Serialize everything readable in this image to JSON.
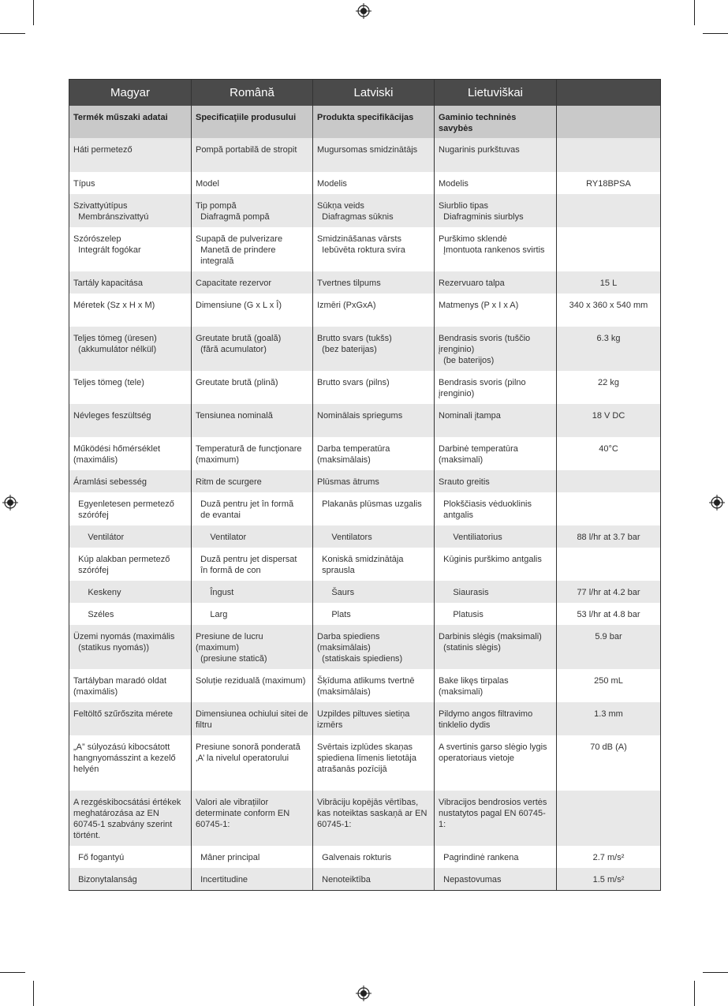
{
  "table": {
    "headers": [
      "Magyar",
      "Română",
      "Latviski",
      "Lietuviškai",
      ""
    ],
    "rows": [
      [
        "Termék műszaki adatai",
        "Specificaţiile produsului",
        "Produkta specifikācijas",
        "Gaminio techninės savybės",
        ""
      ],
      [
        "Háti permetező",
        "Pompă portabilă de stropit",
        "Mugursomas smidzinātājs",
        "Nugarinis purkštuvas",
        ""
      ],
      [
        "Típus",
        "Model",
        "Modelis",
        "Modelis",
        "RY18BPSA"
      ],
      [
        "Szivattyútípus\n  Membránszivattyú",
        "Tip pompă\n  Diafragmă pompă",
        "Sūkņa veids\n  Diafragmas sūknis",
        "Siurblio tipas\n  Diafragminis siurblys",
        ""
      ],
      [
        "Szórószelep\n  Integrált fogókar",
        "Supapă de pulverizare\n  Manetă de prindere\n  integrală",
        "Smidzināšanas vārsts\n  Iebūvēta roktura svira",
        "Purškimo sklendė\n  Įmontuota rankenos svirtis",
        ""
      ],
      [
        "Tartály kapacitása",
        "Capacitate rezervor",
        "Tvertnes tilpums",
        "Rezervuaro talpa",
        "15 L"
      ],
      [
        "Méretek (Sz x H x M)",
        "Dimensiune (G x L x Î)",
        "Izmēri (PxGxA)",
        "Matmenys (P x I x A)",
        "340 x 360 x 540 mm"
      ],
      [
        "Teljes tömeg (üresen)\n  (akkumulátor nélkül)",
        "Greutate brută (goală)\n  (fără acumulator)",
        "Brutto svars (tukšs)\n  (bez baterijas)",
        "Bendrasis svoris (tuščio įrenginio)\n  (be baterijos)",
        "6.3 kg"
      ],
      [
        "Teljes tömeg (tele)",
        "Greutate brută (plină)",
        "Brutto svars (pilns)",
        "Bendrasis svoris (pilno įrenginio)",
        "22 kg"
      ],
      [
        "Névleges feszültség",
        "Tensiunea nominală",
        "Nominālais spriegums",
        "Nominali įtampa",
        "18 V DC"
      ],
      [
        "Működési hőmérséklet (maximális)",
        "Temperatură de funcţionare (maximum)",
        "Darba temperatūra (maksimālais)",
        "Darbinė temperatūra (maksimali)",
        "40°C"
      ],
      [
        "Áramlási sebesség",
        "Ritm de scurgere",
        "Plūsmas ātrums",
        "Srauto greitis",
        ""
      ],
      [
        "  Egyenletesen permetező\n  szórófej",
        "  Duză pentru jet în formă\n  de evantai",
        "  Plakanās plūsmas uzgalis",
        "  Plokščiasis vėduoklinis\n  antgalis",
        ""
      ],
      [
        "      Ventilátor",
        "      Ventilator",
        "      Ventilators",
        "      Ventiliatorius",
        "88 l/hr at 3.7 bar"
      ],
      [
        "  Kúp alakban permetező\n  szórófej",
        "  Duză pentru jet dispersat\n  în formă de con",
        "  Koniskā smidzinātāja\n  sprausla",
        "  Kūginis purškimo antgalis",
        ""
      ],
      [
        "      Keskeny",
        "      Îngust",
        "      Šaurs",
        "      Siaurasis",
        "77 l/hr at 4.2 bar"
      ],
      [
        "      Széles",
        "      Larg",
        "      Plats",
        "      Platusis",
        "53 l/hr at 4.8 bar"
      ],
      [
        "Üzemi nyomás (maximális\n  (statikus nyomás))",
        "Presiune de lucru (maximum)\n  (presiune statică)",
        "Darba spiediens (maksimālais)\n  (statiskais spiediens)",
        "Darbinis slėgis (maksimali)\n  (statinis slėgis)",
        "5.9 bar"
      ],
      [
        "Tartályban maradó oldat (maximális)",
        "Soluție reziduală (maximum)",
        "Šķīduma atlikums tvertnē (maksimālais)",
        "Bake likęs tirpalas (maksimali)",
        "250 mL"
      ],
      [
        "Feltöltő szűrőszita mérete",
        "Dimensiunea ochiului sitei de filtru",
        "Uzpildes piltuves sietiņa izmērs",
        "Pildymo angos filtravimo tinklelio dydis",
        "1.3 mm"
      ],
      [
        "„A” súlyozású kibocsátott hangnyomásszint a kezelő helyén",
        "Presiune sonoră ponderată ‚A’ la nivelul operatorului",
        "Svērtais izplūdes skaņas spiediena līmenis lietotāja atrašanās pozīcijā",
        "A svertinis garso slėgio lygis operatoriaus vietoje",
        "70 dB (A)"
      ],
      [
        "A rezgéskibocsátási értékek meghatározása az EN 60745-1 szabvány szerint történt.",
        "Valori ale vibrațiilor determinate conform EN 60745-1:",
        "Vibrāciju kopējās vērtības, kas noteiktas saskaņā ar EN 60745-1:",
        "Vibracijos bendrosios vertės nustatytos pagal EN 60745-1:",
        ""
      ],
      [
        "  Fő fogantyú",
        "  Mâner principal",
        "  Galvenais rokturis",
        "  Pagrindinė rankena",
        "2.7 m/s²"
      ],
      [
        "  Bizonytalanság",
        "  Incertitudine",
        "  Nenoteiktība",
        "  Nepastovumas",
        "1.5 m/s²"
      ]
    ]
  }
}
